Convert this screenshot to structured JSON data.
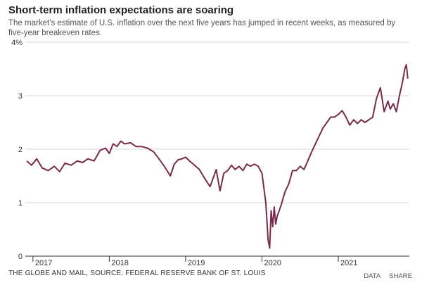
{
  "title": "Short-term inflation expectations are soaring",
  "subtitle": "The market’s estimate of U.S. inflation over the next five years has jumped in recent weeks, as measured by five-year breakeven rates.",
  "footer": "THE GLOBE AND MAIL, SOURCE: FEDERAL RESERVE BANK OF ST. LOUIS",
  "actions": {
    "data_label": "DATA",
    "share_label": "SHARE"
  },
  "colors": {
    "line": "#7a2a4a",
    "grid": "#d9d9d9",
    "axis": "#333333"
  },
  "chart_data": {
    "type": "line",
    "title": "Short-term inflation expectations are soaring",
    "xlabel": "",
    "ylabel": "",
    "ylim": [
      0,
      4
    ],
    "y_ticks": [
      "0",
      "1",
      "2",
      "3",
      "4%"
    ],
    "x_ticks": [
      "2017",
      "2018",
      "2019",
      "2020",
      "2021"
    ],
    "xlim": [
      2016.9,
      2021.93
    ],
    "grid": "horizontal",
    "series": [
      {
        "x": [
          2016.92,
          2016.98,
          2017.05,
          2017.12,
          2017.2,
          2017.28,
          2017.35,
          2017.42,
          2017.5,
          2017.58,
          2017.65,
          2017.72,
          2017.8,
          2017.88,
          2017.95,
          2018.0,
          2018.05,
          2018.1,
          2018.15,
          2018.2,
          2018.28,
          2018.35,
          2018.42,
          2018.5,
          2018.58,
          2018.65,
          2018.72,
          2018.8,
          2018.85,
          2018.9,
          2018.95,
          2019.0,
          2019.05,
          2019.1,
          2019.18,
          2019.25,
          2019.32,
          2019.4,
          2019.45,
          2019.5,
          2019.55,
          2019.6,
          2019.65,
          2019.7,
          2019.75,
          2019.8,
          2019.85,
          2019.9,
          2019.95,
          2020.0,
          2020.05,
          2020.08,
          2020.1,
          2020.12,
          2020.14,
          2020.16,
          2020.18,
          2020.2,
          2020.25,
          2020.3,
          2020.35,
          2020.4,
          2020.45,
          2020.5,
          2020.55,
          2020.6,
          2020.65,
          2020.7,
          2020.75,
          2020.8,
          2020.85,
          2020.9,
          2020.95,
          2021.0,
          2021.05,
          2021.1,
          2021.15,
          2021.2,
          2021.25,
          2021.3,
          2021.35,
          2021.4,
          2021.45,
          2021.5,
          2021.55,
          2021.6,
          2021.65,
          2021.68,
          2021.72,
          2021.76,
          2021.8,
          2021.84,
          2021.87,
          2021.89,
          2021.91
        ],
        "values": [
          1.78,
          1.7,
          1.82,
          1.65,
          1.6,
          1.68,
          1.58,
          1.74,
          1.7,
          1.78,
          1.75,
          1.82,
          1.78,
          1.98,
          2.02,
          1.92,
          2.1,
          2.05,
          2.15,
          2.1,
          2.12,
          2.05,
          2.05,
          2.02,
          1.95,
          1.82,
          1.68,
          1.5,
          1.72,
          1.8,
          1.82,
          1.85,
          1.78,
          1.72,
          1.62,
          1.45,
          1.3,
          1.62,
          1.22,
          1.55,
          1.6,
          1.7,
          1.62,
          1.68,
          1.6,
          1.72,
          1.68,
          1.72,
          1.68,
          1.55,
          1.0,
          0.3,
          0.15,
          0.85,
          0.55,
          0.92,
          0.6,
          0.75,
          0.95,
          1.2,
          1.35,
          1.6,
          1.6,
          1.68,
          1.62,
          1.78,
          1.95,
          2.1,
          2.25,
          2.4,
          2.5,
          2.6,
          2.6,
          2.65,
          2.72,
          2.6,
          2.45,
          2.55,
          2.48,
          2.55,
          2.5,
          2.55,
          2.6,
          2.95,
          3.15,
          2.7,
          2.9,
          2.75,
          2.85,
          2.7,
          3.0,
          3.25,
          3.5,
          3.58,
          3.32
        ]
      }
    ]
  }
}
